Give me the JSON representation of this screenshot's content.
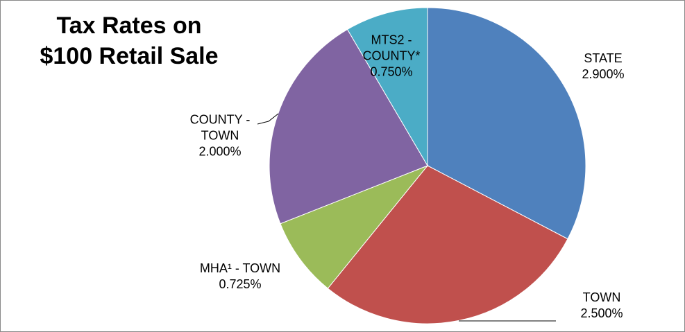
{
  "chart_data": {
    "type": "pie",
    "title": "Tax Rates on $100 Retail Sale",
    "categories": [
      "STATE",
      "TOWN",
      "MHA¹ - TOWN",
      "COUNTY - TOWN",
      "MTS2 - COUNTY*"
    ],
    "values": [
      2.9,
      2.5,
      0.725,
      2.0,
      0.75
    ],
    "value_labels": [
      "2.900%",
      "2.500%",
      "0.725%",
      "2.000%",
      "0.750%"
    ],
    "colors": [
      "#4f81bd",
      "#c0504d",
      "#9bbb59",
      "#8064a2",
      "#4bacc6"
    ]
  }
}
